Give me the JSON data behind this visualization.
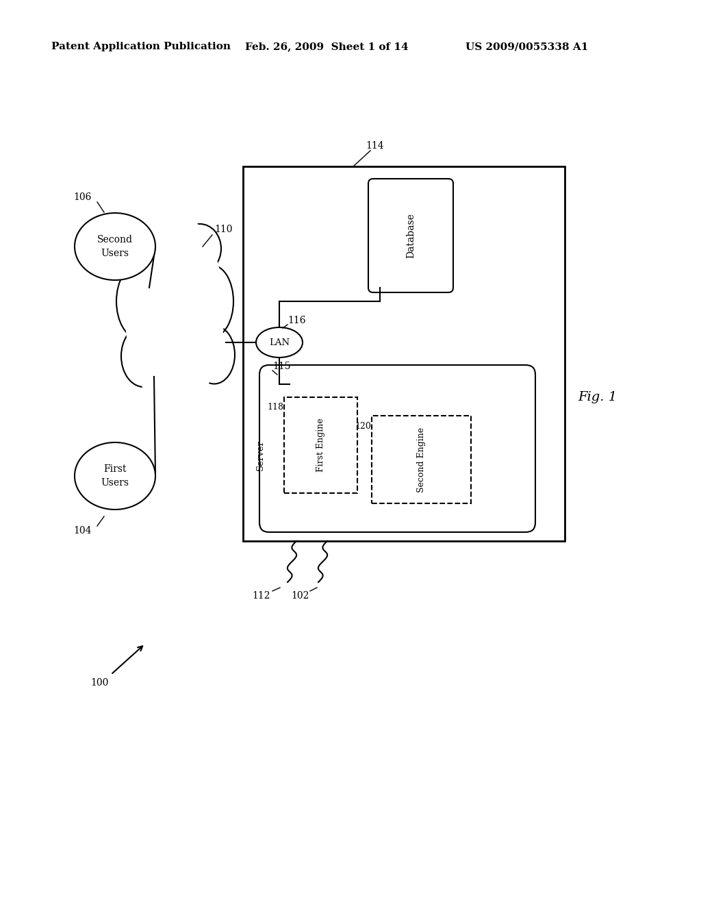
{
  "bg_color": "#ffffff",
  "header_left": "Patent Application Publication",
  "header_mid": "Feb. 26, 2009  Sheet 1 of 14",
  "header_right": "US 2009/0055338 A1",
  "fig_label": "Fig. 1"
}
